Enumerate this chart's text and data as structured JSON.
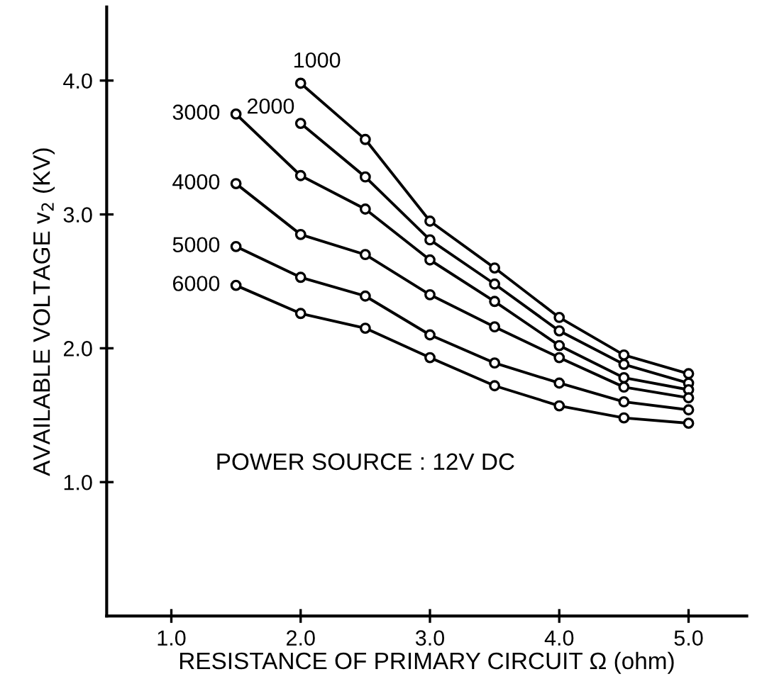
{
  "chart_data": {
    "type": "line",
    "xlabel": "RESISTANCE OF PRIMARY CIRCUIT Ω (ohm)",
    "ylabel": "AVAILABLE VOLTAGE v$_{2}$ (KV)",
    "annotations": [
      "POWER SOURCE : 12V DC"
    ],
    "xlim": [
      0.5,
      5.45
    ],
    "ylim": [
      0,
      4.55
    ],
    "xticks": [
      {
        "value": 1,
        "label": "1.0"
      },
      {
        "value": 2,
        "label": "2.0"
      },
      {
        "value": 3,
        "label": "3.0"
      },
      {
        "value": 4,
        "label": "4.0"
      },
      {
        "value": 5,
        "label": "5.0"
      }
    ],
    "yticks": [
      {
        "value": 1,
        "label": "1.0"
      },
      {
        "value": 2,
        "label": "2.0"
      },
      {
        "value": 3,
        "label": "3.0"
      },
      {
        "value": 4,
        "label": "4.0"
      }
    ],
    "marker": "circle",
    "line_style": "solid",
    "grid": false,
    "legend": false,
    "series": [
      {
        "name": "1000",
        "color": "#000000",
        "x": [
          2.0,
          2.5,
          3.0,
          3.5,
          4.0,
          4.5,
          5.0
        ],
        "values": [
          3.98,
          3.56,
          2.95,
          2.6,
          2.23,
          1.95,
          1.81
        ]
      },
      {
        "name": "2000",
        "color": "#000000",
        "x": [
          2.0,
          2.5,
          3.0,
          3.5,
          4.0,
          4.5,
          5.0
        ],
        "values": [
          3.68,
          3.28,
          2.81,
          2.48,
          2.13,
          1.88,
          1.74
        ]
      },
      {
        "name": "3000",
        "color": "#000000",
        "x": [
          1.5,
          2.0,
          2.5,
          3.0,
          3.5,
          4.0,
          4.5,
          5.0
        ],
        "values": [
          3.75,
          3.29,
          3.04,
          2.66,
          2.35,
          2.02,
          1.78,
          1.69
        ]
      },
      {
        "name": "4000",
        "color": "#000000",
        "x": [
          1.5,
          2.0,
          2.5,
          3.0,
          3.5,
          4.0,
          4.5,
          5.0
        ],
        "values": [
          3.23,
          2.85,
          2.7,
          2.4,
          2.16,
          1.93,
          1.71,
          1.63
        ]
      },
      {
        "name": "5000",
        "color": "#000000",
        "x": [
          1.5,
          2.0,
          2.5,
          3.0,
          3.5,
          4.0,
          4.5,
          5.0
        ],
        "values": [
          2.76,
          2.53,
          2.39,
          2.1,
          1.89,
          1.74,
          1.6,
          1.54
        ]
      },
      {
        "name": "6000",
        "color": "#000000",
        "x": [
          1.5,
          2.0,
          2.5,
          3.0,
          3.5,
          4.0,
          4.5,
          5.0
        ],
        "values": [
          2.47,
          2.26,
          2.15,
          1.93,
          1.72,
          1.57,
          1.48,
          1.44
        ]
      }
    ]
  }
}
